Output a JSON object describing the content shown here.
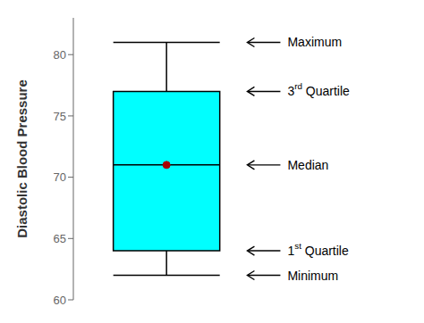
{
  "chart_data": {
    "type": "box",
    "title": "",
    "ylabel": "Diastolic Blood Pressure",
    "ylim": [
      60,
      83
    ],
    "yticks": [
      60,
      65,
      70,
      75,
      80
    ],
    "min": 62,
    "q1": 64,
    "median": 71,
    "q3": 77,
    "max": 81,
    "color": "#00FFFF",
    "median_color": "#AA0000",
    "grid": false,
    "annotations": [
      {
        "text": "Maximum",
        "y": 81
      },
      {
        "text": "3rd Quartile",
        "y": 77
      },
      {
        "text": "Median",
        "y": 71
      },
      {
        "text": "1st Quartile",
        "y": 64
      },
      {
        "text": "Minimum",
        "y": 62
      }
    ]
  }
}
